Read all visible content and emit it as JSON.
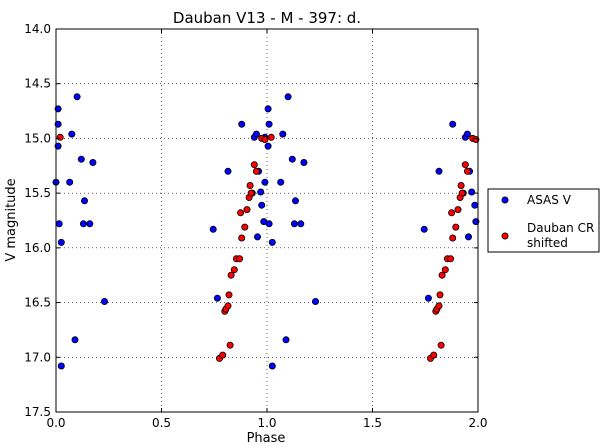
{
  "chart_data": {
    "type": "scatter",
    "title": "Dauban V13 - M - 397: d.",
    "xlabel": "Phase",
    "ylabel": "V magnitude",
    "xlim": [
      0.0,
      2.0
    ],
    "ylim": [
      17.5,
      14.0
    ],
    "y_inverted": true,
    "grid": true,
    "x_ticks": [
      "0.0",
      "0.5",
      "1.0",
      "1.5",
      "2.0"
    ],
    "y_ticks": [
      "14.0",
      "14.5",
      "15.0",
      "15.5",
      "16.0",
      "16.5",
      "17.0",
      "17.5"
    ],
    "legend_position": "right-outside",
    "series": [
      {
        "name": "ASAS V",
        "color": "#0000ff",
        "points": [
          [
            0.0,
            15.4
          ],
          [
            0.01,
            14.73
          ],
          [
            0.01,
            14.87
          ],
          [
            0.01,
            15.07
          ],
          [
            0.015,
            15.78
          ],
          [
            0.025,
            15.95
          ],
          [
            0.025,
            17.08
          ],
          [
            0.065,
            15.4
          ],
          [
            0.075,
            14.96
          ],
          [
            0.09,
            16.84
          ],
          [
            0.1,
            14.62
          ],
          [
            0.12,
            15.19
          ],
          [
            0.13,
            15.78
          ],
          [
            0.135,
            15.57
          ],
          [
            0.16,
            15.78
          ],
          [
            0.175,
            15.22
          ],
          [
            0.23,
            16.49
          ],
          [
            0.745,
            15.83
          ],
          [
            0.765,
            16.46
          ],
          [
            0.815,
            15.3
          ],
          [
            0.88,
            14.87
          ],
          [
            0.93,
            15.5
          ],
          [
            0.94,
            14.99
          ],
          [
            0.95,
            14.96
          ],
          [
            0.955,
            15.9
          ],
          [
            0.96,
            15.3
          ],
          [
            0.97,
            15.49
          ],
          [
            0.975,
            15.61
          ],
          [
            0.985,
            15.76
          ],
          [
            0.99,
            14.99
          ],
          [
            0.99,
            15.4
          ],
          [
            1.005,
            14.73
          ],
          [
            1.005,
            15.07
          ],
          [
            1.01,
            14.87
          ],
          [
            1.01,
            15.78
          ],
          [
            1.025,
            15.95
          ],
          [
            1.025,
            17.08
          ],
          [
            1.065,
            15.4
          ],
          [
            1.075,
            14.96
          ],
          [
            1.09,
            16.84
          ],
          [
            1.1,
            14.62
          ],
          [
            1.12,
            15.19
          ],
          [
            1.13,
            15.78
          ],
          [
            1.135,
            15.57
          ],
          [
            1.16,
            15.78
          ],
          [
            1.175,
            15.22
          ],
          [
            1.23,
            16.49
          ],
          [
            1.745,
            15.83
          ],
          [
            1.765,
            16.46
          ],
          [
            1.815,
            15.3
          ],
          [
            1.88,
            14.87
          ],
          [
            1.93,
            15.5
          ],
          [
            1.94,
            14.99
          ],
          [
            1.95,
            14.96
          ],
          [
            1.955,
            15.9
          ],
          [
            1.96,
            15.3
          ],
          [
            1.97,
            15.49
          ],
          [
            1.985,
            15.61
          ],
          [
            1.99,
            15.76
          ]
        ]
      },
      {
        "name": "Dauban CR shifted",
        "color": "#ff0000",
        "points": [
          [
            0.02,
            14.99
          ],
          [
            0.775,
            17.01
          ],
          [
            0.79,
            16.98
          ],
          [
            0.8,
            16.58
          ],
          [
            0.805,
            16.56
          ],
          [
            0.815,
            16.53
          ],
          [
            0.82,
            16.43
          ],
          [
            0.825,
            16.89
          ],
          [
            0.83,
            16.25
          ],
          [
            0.845,
            16.2
          ],
          [
            0.855,
            16.1
          ],
          [
            0.87,
            16.1
          ],
          [
            0.875,
            15.68
          ],
          [
            0.88,
            15.91
          ],
          [
            0.895,
            15.81
          ],
          [
            0.905,
            15.65
          ],
          [
            0.915,
            15.54
          ],
          [
            0.92,
            15.43
          ],
          [
            0.925,
            15.5
          ],
          [
            0.94,
            15.24
          ],
          [
            0.95,
            15.3
          ],
          [
            0.975,
            15.0
          ],
          [
            0.99,
            15.01
          ],
          [
            1.02,
            14.99
          ],
          [
            1.775,
            17.01
          ],
          [
            1.79,
            16.98
          ],
          [
            1.8,
            16.58
          ],
          [
            1.805,
            16.56
          ],
          [
            1.815,
            16.53
          ],
          [
            1.82,
            16.43
          ],
          [
            1.825,
            16.89
          ],
          [
            1.83,
            16.25
          ],
          [
            1.845,
            16.2
          ],
          [
            1.855,
            16.1
          ],
          [
            1.87,
            16.1
          ],
          [
            1.875,
            15.68
          ],
          [
            1.88,
            15.91
          ],
          [
            1.895,
            15.81
          ],
          [
            1.905,
            15.65
          ],
          [
            1.915,
            15.54
          ],
          [
            1.92,
            15.43
          ],
          [
            1.925,
            15.5
          ],
          [
            1.94,
            15.24
          ],
          [
            1.95,
            15.3
          ],
          [
            1.975,
            15.0
          ],
          [
            1.99,
            15.01
          ]
        ]
      }
    ],
    "legend": {
      "entries": [
        {
          "label_lines": [
            "ASAS V"
          ],
          "color": "#0000ff"
        },
        {
          "label_lines": [
            "Dauban CR",
            "shifted"
          ],
          "color": "#ff0000"
        }
      ]
    }
  }
}
